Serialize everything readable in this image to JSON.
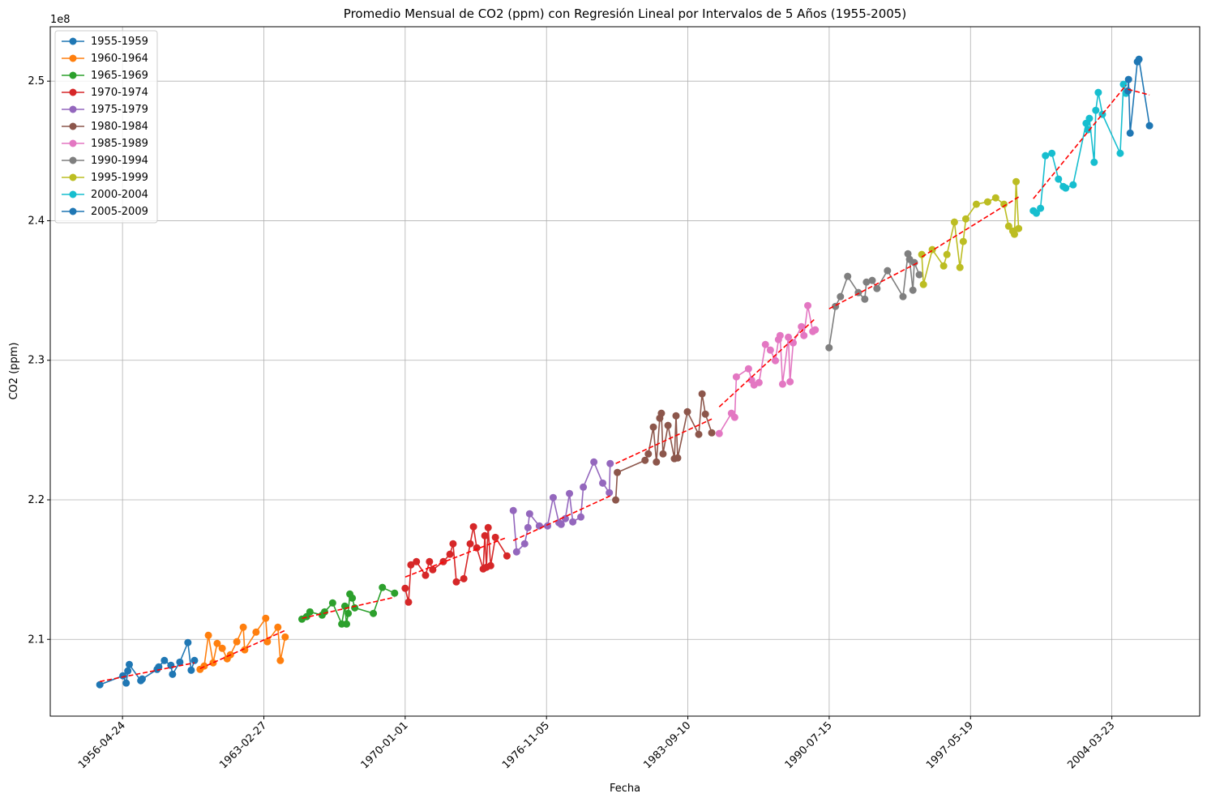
{
  "chart_data": {
    "type": "line",
    "title": "Promedio Mensual de CO2 (ppm) con Regresión Lineal por Intervalos de 5 Años (1955-2005)",
    "x_label": "Fecha",
    "y_label": "CO2 (ppm)",
    "y_offset": "1e8",
    "xlim": [
      "1952-10-24",
      "2008-06-24"
    ],
    "xticks": [
      "1956-04-24",
      "1963-02-27",
      "1970-01-01",
      "1976-11-05",
      "1983-09-10",
      "1990-07-15",
      "1997-05-19",
      "2004-03-23"
    ],
    "ylim": [
      2.045,
      2.539
    ],
    "yticks": [
      2.1,
      2.2,
      2.3,
      2.4,
      2.5
    ],
    "grid": true,
    "legend": "upper left",
    "trend_color": "#ff0000",
    "series": [
      {
        "name": "1955-1959",
        "color": "#1f77b4",
        "x": [
          "1955-03-20",
          "1956-05-01",
          "1956-06-28",
          "1956-07-27",
          "1956-08-22",
          "1957-03-13",
          "1957-04-08",
          "1957-12-27",
          "1958-01-25",
          "1958-05-05",
          "1958-08-28",
          "1958-09-26",
          "1959-02-02",
          "1959-06-25",
          "1959-08-22",
          "1959-10-19"
        ],
        "values": [
          2.0675,
          2.0739,
          2.0687,
          2.0774,
          2.082,
          2.0704,
          2.0716,
          2.0785,
          2.0803,
          2.0849,
          2.0814,
          2.075,
          2.0837,
          2.0977,
          2.0779,
          2.0849
        ],
        "trend_values": [
          2.0698,
          2.0832
        ]
      },
      {
        "name": "1960-1964",
        "color": "#ff7f0e",
        "x": [
          "1960-01-26",
          "1960-04-08",
          "1960-06-21",
          "1960-09-13",
          "1960-11-24",
          "1961-02-21",
          "1961-05-19",
          "1961-07-16",
          "1961-11-06",
          "1962-02-28",
          "1962-03-25",
          "1962-10-12",
          "1963-04-01",
          "1963-04-30",
          "1963-11-02",
          "1963-12-16",
          "1964-03-10"
        ],
        "values": [
          2.0785,
          2.0809,
          2.1029,
          2.0832,
          2.0971,
          2.0936,
          2.0861,
          2.089,
          2.0983,
          2.1087,
          2.0925,
          2.1052,
          2.1151,
          2.0983,
          2.1087,
          2.0849,
          2.1017
        ],
        "trend_values": [
          2.0791,
          2.1064
        ]
      },
      {
        "name": "1965-1969",
        "color": "#2ca02c",
        "x": [
          "1965-01-01",
          "1965-03-25",
          "1965-05-22",
          "1965-12-24",
          "1966-02-06",
          "1966-06-28",
          "1966-12-06",
          "1967-01-30",
          "1967-03-01",
          "1967-03-30",
          "1967-04-28",
          "1967-06-11",
          "1967-07-24",
          "1968-06-17",
          "1968-11-24",
          "1969-06-28"
        ],
        "values": [
          2.1145,
          2.1163,
          2.1197,
          2.1174,
          2.1197,
          2.1261,
          2.111,
          2.1238,
          2.111,
          2.1186,
          2.1325,
          2.1296,
          2.1226,
          2.1186,
          2.1372,
          2.1331
        ],
        "trend_values": [
          2.1151,
          2.1302
        ]
      },
      {
        "name": "1970-1974",
        "color": "#d62728",
        "x": [
          "1970-01-01",
          "1970-03-01",
          "1970-04-12",
          "1970-07-19",
          "1970-12-27",
          "1971-03-07",
          "1971-05-04",
          "1971-11-07",
          "1972-03-03",
          "1972-04-27",
          "1972-06-24",
          "1972-11-03",
          "1973-02-24",
          "1973-04-23",
          "1973-06-20",
          "1973-10-12",
          "1973-11-10",
          "1973-12-09",
          "1974-01-08",
          "1974-02-21",
          "1974-05-16",
          "1974-12-06"
        ],
        "values": [
          2.1366,
          2.1267,
          2.1534,
          2.1557,
          2.1459,
          2.1557,
          2.1499,
          2.1557,
          2.161,
          2.1685,
          2.1412,
          2.1435,
          2.1685,
          2.1807,
          2.1656,
          2.1505,
          2.1743,
          2.1517,
          2.1801,
          2.1528,
          2.1731,
          2.1598
        ],
        "trend_values": [
          2.1447,
          2.1731
        ]
      },
      {
        "name": "1975-1979",
        "color": "#9467bd",
        "x": [
          "1975-03-28",
          "1975-05-26",
          "1975-10-16",
          "1975-12-13",
          "1976-01-11",
          "1976-07-01",
          "1976-11-24",
          "1977-03-03",
          "1977-06-13",
          "1977-07-23",
          "1977-10-04",
          "1977-12-16",
          "1978-02-13",
          "1978-07-05",
          "1978-08-18",
          "1979-02-21",
          "1979-07-27",
          "1979-11-21",
          "1979-12-06"
        ],
        "values": [
          2.1923,
          2.1627,
          2.1685,
          2.1801,
          2.19,
          2.1813,
          2.1813,
          2.2016,
          2.1836,
          2.1824,
          2.1865,
          2.2045,
          2.1842,
          2.1877,
          2.2091,
          2.2271,
          2.212,
          2.2051,
          2.226
        ],
        "trend_values": [
          2.1708,
          2.2028
        ]
      },
      {
        "name": "1980-1984",
        "color": "#8c564b",
        "x": [
          "1980-03-13",
          "1980-04-11",
          "1981-08-14",
          "1981-10-11",
          "1982-01-08",
          "1982-03-03",
          "1982-05-01",
          "1982-05-30",
          "1982-06-28",
          "1982-09-24",
          "1983-01-15",
          "1983-02-13",
          "1983-03-14",
          "1983-09-02",
          "1984-03-21",
          "1984-05-19",
          "1984-07-16",
          "1984-11-06"
        ],
        "values": [
          2.1999,
          2.2196,
          2.2283,
          2.2329,
          2.2521,
          2.2271,
          2.2585,
          2.262,
          2.2329,
          2.2533,
          2.2295,
          2.2602,
          2.23,
          2.2631,
          2.2469,
          2.2759,
          2.2614,
          2.248
        ],
        "trend_values": [
          2.226,
          2.2579
        ]
      },
      {
        "name": "1985-1989",
        "color": "#e377c2",
        "x": [
          "1985-03-18",
          "1985-10-20",
          "1985-12-17",
          "1986-01-15",
          "1986-08-18",
          "1986-10-12",
          "1986-11-24",
          "1987-02-20",
          "1987-06-13",
          "1987-09-09",
          "1987-12-06",
          "1988-01-30",
          "1988-02-28",
          "1988-04-12",
          "1988-07-23",
          "1988-08-22",
          "1988-10-16",
          "1989-03-11",
          "1989-04-24",
          "1989-07-02",
          "1989-09-28",
          "1989-11-11"
        ],
        "values": [
          2.2475,
          2.262,
          2.2591,
          2.2881,
          2.2939,
          2.2858,
          2.2823,
          2.284,
          2.3113,
          2.3073,
          2.2997,
          2.3148,
          2.3177,
          2.2829,
          2.3165,
          2.2846,
          2.3125,
          2.3241,
          2.3177,
          2.3392,
          2.3206,
          2.3218
        ],
        "trend_values": [
          2.2666,
          2.3299
        ]
      },
      {
        "name": "1990-1994",
        "color": "#7f7f7f",
        "x": [
          "1990-07-13",
          "1990-11-03",
          "1991-01-30",
          "1991-06-07",
          "1991-12-13",
          "1992-04-05",
          "1992-05-04",
          "1992-08-14",
          "1992-11-06",
          "1993-05-11",
          "1994-02-10",
          "1994-05-08",
          "1994-06-06",
          "1994-08-04",
          "1994-08-29",
          "1994-11-25"
        ],
        "values": [
          2.309,
          2.3386,
          2.3456,
          2.3601,
          2.3485,
          2.3438,
          2.356,
          2.3572,
          2.3514,
          2.3642,
          2.3456,
          2.3763,
          2.3723,
          2.3502,
          2.37,
          2.3613
        ],
        "trend_values": [
          2.3369,
          2.3705
        ]
      },
      {
        "name": "1995-1999",
        "color": "#bcbd22",
        "x": [
          "1995-01-08",
          "1995-02-06",
          "1995-07-13",
          "1996-01-30",
          "1996-03-28",
          "1996-08-07",
          "1996-11-13",
          "1997-01-11",
          "1997-02-25",
          "1997-08-30",
          "1998-03-18",
          "1998-08-07",
          "1999-01-01",
          "1999-03-25",
          "1999-06-06",
          "1999-07-05",
          "1999-08-04",
          "1999-09-17"
        ],
        "values": [
          2.3758,
          2.3543,
          2.3793,
          2.3676,
          2.3758,
          2.399,
          2.3665,
          2.3851,
          2.4013,
          2.4118,
          2.4135,
          2.4164,
          2.4118,
          2.3961,
          2.3926,
          2.3903,
          2.428,
          2.3944
        ],
        "trend_values": [
          2.374,
          2.417
        ]
      },
      {
        "name": "2000-2004",
        "color": "#17becf",
        "x": [
          "2000-06-03",
          "2000-07-27",
          "2000-10-08",
          "2001-01-04",
          "2001-04-27",
          "2001-08-22",
          "2001-11-14",
          "2001-12-28",
          "2002-05-08",
          "2002-12-24",
          "2003-01-22",
          "2003-02-20",
          "2003-05-15",
          "2003-06-13",
          "2003-07-27",
          "2003-10-08",
          "2004-08-18",
          "2004-10-15",
          "2004-11-28"
        ],
        "values": [
          2.4071,
          2.4054,
          2.4089,
          2.4466,
          2.4483,
          2.4298,
          2.4245,
          2.4234,
          2.4257,
          2.4698,
          2.4652,
          2.4733,
          2.4419,
          2.4791,
          2.4919,
          2.4762,
          2.4483,
          2.4977,
          2.4913
        ],
        "trend_values": [
          2.4158,
          2.4971
        ]
      },
      {
        "name": "2005-2009",
        "color": "#1f77b4",
        "x": [
          "2005-01-01",
          "2005-01-12",
          "2005-02-10",
          "2005-06-18",
          "2005-07-16",
          "2006-01-18"
        ],
        "values": [
          2.493,
          2.5012,
          2.4628,
          2.5139,
          2.5157,
          2.4681
        ],
        "trend_values": [
          2.4942,
          2.4901
        ]
      }
    ]
  }
}
